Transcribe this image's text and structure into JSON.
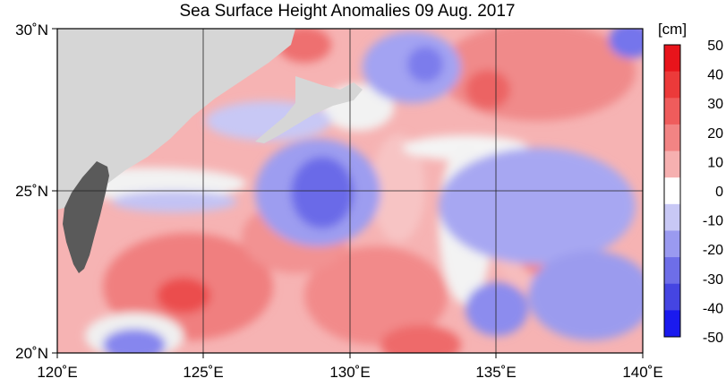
{
  "title": "Sea Surface Height Anomalies  09 Aug. 2017",
  "map": {
    "lon_range": [
      120,
      140
    ],
    "lat_range": [
      20,
      30
    ],
    "lon_ticks": [
      "120˚E",
      "125˚E",
      "130˚E",
      "135˚E",
      "140˚E"
    ],
    "lat_ticks": [
      "20˚N",
      "25˚N",
      "30˚N"
    ],
    "land_color": "#d6d6d6",
    "taiwan_color": "#5a5a5a"
  },
  "colorbar": {
    "unit": "[cm]",
    "labels": [
      "50",
      "40",
      "30",
      "20",
      "10",
      "0",
      "-10",
      "-20",
      "-30",
      "-40",
      "-50"
    ],
    "colors_top_to_bottom": [
      "#e8141b",
      "#ec3a3a",
      "#ef5c5c",
      "#f28484",
      "#f6b0b0",
      "#ffffff",
      "#c8c8f5",
      "#9a9af0",
      "#6e6ee8",
      "#4545e2",
      "#1a1aee"
    ]
  }
}
